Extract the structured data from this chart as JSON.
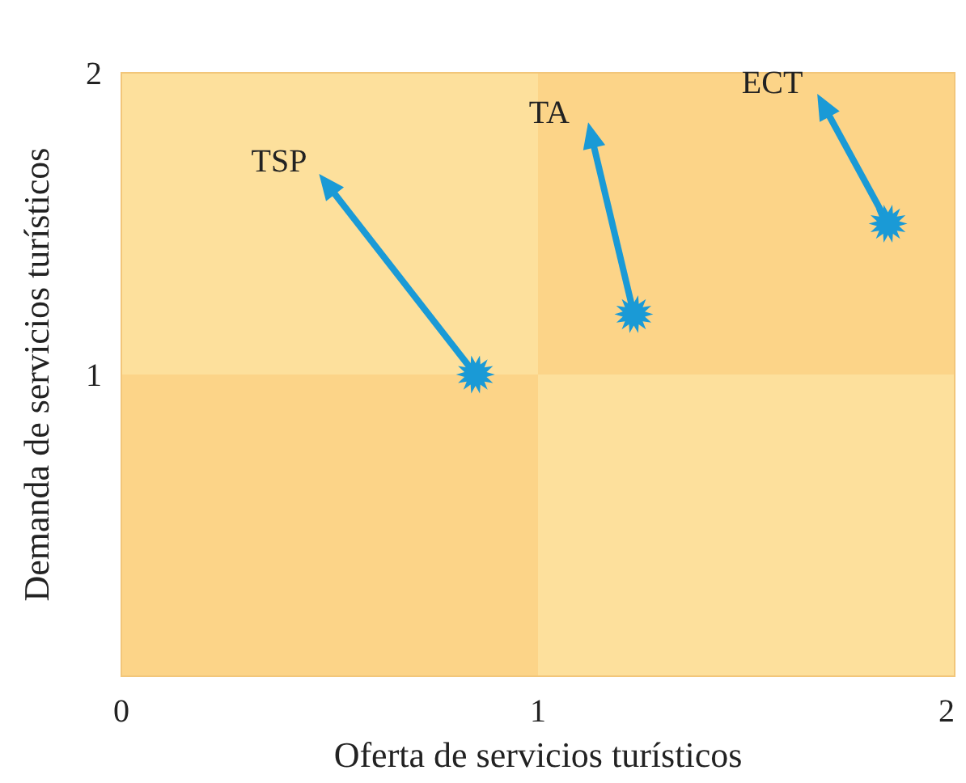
{
  "chart_data": {
    "type": "scatter",
    "xlabel": "Oferta de servicios turísticos",
    "ylabel": "Demanda de servicios turísticos",
    "xlim": [
      0,
      2
    ],
    "ylim": [
      0,
      2
    ],
    "xticks": [
      0,
      1,
      2
    ],
    "yticks": [
      1,
      2
    ],
    "grid": false,
    "series": [
      {
        "marker": "star",
        "color": "#1a9ad6",
        "x": [
          0.85,
          1.23,
          1.84
        ],
        "values": [
          1.0,
          1.2,
          1.5
        ]
      },
      {
        "marker": "triangle",
        "color": "#1a9ad6",
        "x": [
          0.5,
          1.13,
          1.69
        ],
        "values": [
          1.62,
          1.78,
          1.88
        ]
      }
    ],
    "annotations": [
      {
        "text": "TSP",
        "x": 0.5,
        "y": 1.62
      },
      {
        "text": "TA",
        "x": 1.13,
        "y": 1.78
      },
      {
        "text": "ECT",
        "x": 1.69,
        "y": 1.88
      }
    ]
  }
}
